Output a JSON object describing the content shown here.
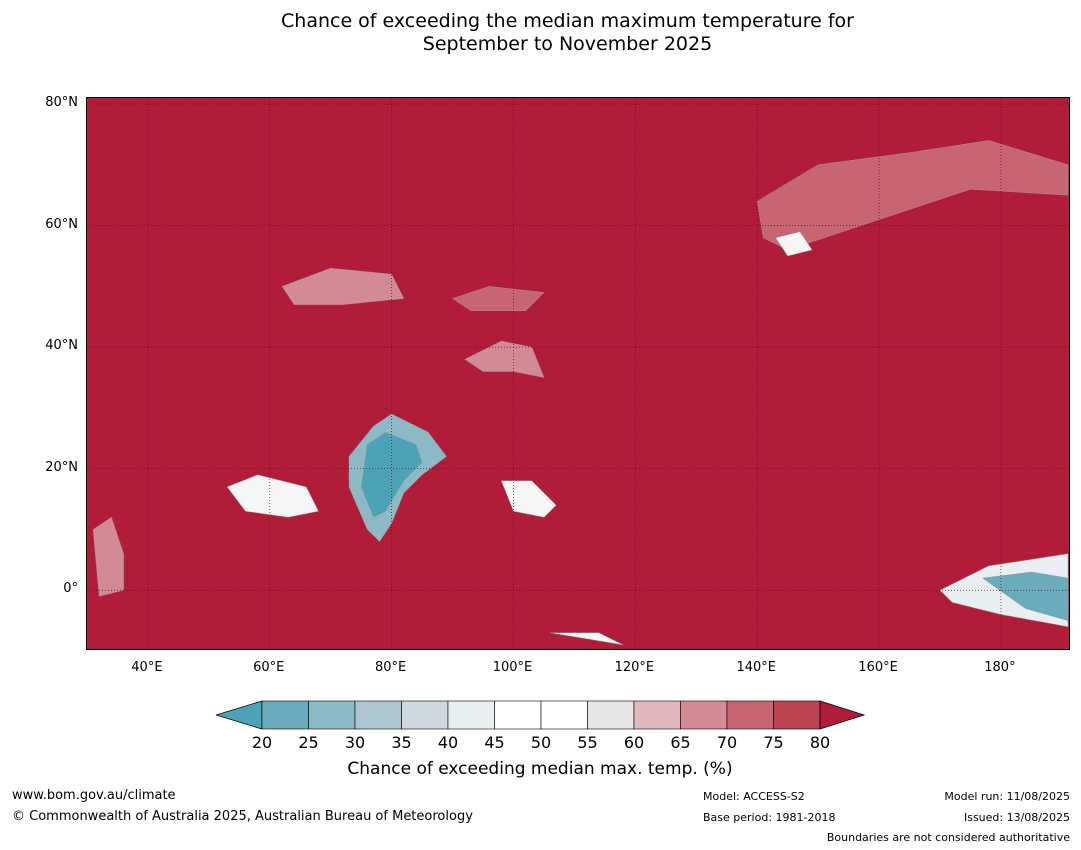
{
  "title_line1": "Chance of exceeding the median maximum temperature for",
  "title_line2": "September to November 2025",
  "map": {
    "projection": "equirectangular",
    "lon_range": [
      30,
      191.5
    ],
    "lat_range": [
      -10,
      81
    ],
    "background_color": "#b11c39",
    "lat_ticks": [
      {
        "value": 80,
        "label": "80°N"
      },
      {
        "value": 60,
        "label": "60°N"
      },
      {
        "value": 40,
        "label": "40°N"
      },
      {
        "value": 20,
        "label": "20°N"
      },
      {
        "value": 0,
        "label": "0°"
      }
    ],
    "lon_ticks": [
      {
        "value": 40,
        "label": "40°E"
      },
      {
        "value": 60,
        "label": "60°E"
      },
      {
        "value": 80,
        "label": "80°E"
      },
      {
        "value": 100,
        "label": "100°E"
      },
      {
        "value": 120,
        "label": "120°E"
      },
      {
        "value": 140,
        "label": "140°E"
      },
      {
        "value": 160,
        "label": "160°E"
      },
      {
        "value": 180,
        "label": "180°"
      }
    ],
    "regions": [
      {
        "name": "india-cool",
        "class": "20-35",
        "points": [
          [
            73,
            22
          ],
          [
            77,
            27
          ],
          [
            80,
            29
          ],
          [
            86,
            26
          ],
          [
            89,
            22
          ],
          [
            85,
            19
          ],
          [
            82,
            16
          ],
          [
            80,
            11
          ],
          [
            78,
            8
          ],
          [
            76,
            10
          ],
          [
            73,
            17
          ]
        ]
      },
      {
        "name": "india-core",
        "class": "20-25",
        "points": [
          [
            76,
            24
          ],
          [
            79,
            26
          ],
          [
            84,
            24
          ],
          [
            85,
            21
          ],
          [
            82,
            18
          ],
          [
            79,
            13
          ],
          [
            77,
            12
          ],
          [
            75,
            17
          ]
        ]
      },
      {
        "name": "arabian-sea-neutral",
        "class": "45-55",
        "points": [
          [
            53,
            17
          ],
          [
            58,
            19
          ],
          [
            66,
            17
          ],
          [
            68,
            13
          ],
          [
            63,
            12
          ],
          [
            56,
            13
          ]
        ]
      },
      {
        "name": "indochina-neutral",
        "class": "45-55",
        "points": [
          [
            98,
            18
          ],
          [
            103,
            18
          ],
          [
            107,
            14
          ],
          [
            105,
            12
          ],
          [
            100,
            13
          ]
        ]
      },
      {
        "name": "tibet-pink",
        "class": "65-75",
        "points": [
          [
            92,
            38
          ],
          [
            98,
            41
          ],
          [
            103,
            40
          ],
          [
            105,
            35
          ],
          [
            100,
            36
          ],
          [
            95,
            36
          ]
        ]
      },
      {
        "name": "central-asia-pink",
        "class": "65-75",
        "points": [
          [
            62,
            50
          ],
          [
            70,
            53
          ],
          [
            80,
            52
          ],
          [
            82,
            48
          ],
          [
            72,
            47
          ],
          [
            64,
            47
          ]
        ]
      },
      {
        "name": "mongolia-pink",
        "class": "70-75",
        "points": [
          [
            90,
            48
          ],
          [
            96,
            50
          ],
          [
            105,
            49
          ],
          [
            102,
            46
          ],
          [
            93,
            46
          ]
        ]
      },
      {
        "name": "siberia-pink",
        "class": "60-75",
        "points": [
          [
            140,
            64
          ],
          [
            150,
            70
          ],
          [
            165,
            72
          ],
          [
            178,
            74
          ],
          [
            191,
            70
          ],
          [
            191,
            65
          ],
          [
            175,
            66
          ],
          [
            160,
            61
          ],
          [
            145,
            56
          ],
          [
            141,
            58
          ]
        ]
      },
      {
        "name": "siberia-neutral",
        "class": "45-55",
        "points": [
          [
            143,
            58
          ],
          [
            147,
            59
          ],
          [
            149,
            56
          ],
          [
            145,
            55
          ]
        ]
      },
      {
        "name": "east-africa-pink",
        "class": "60-70",
        "points": [
          [
            31,
            10
          ],
          [
            34,
            12
          ],
          [
            36,
            6
          ],
          [
            36,
            0
          ],
          [
            32,
            -1
          ]
        ]
      },
      {
        "name": "pacific-neutral",
        "class": "40-55",
        "points": [
          [
            170,
            0
          ],
          [
            178,
            4
          ],
          [
            191,
            6
          ],
          [
            191,
            -6
          ],
          [
            180,
            -4
          ],
          [
            172,
            -2
          ]
        ]
      },
      {
        "name": "pacific-cool",
        "class": "25-35",
        "points": [
          [
            177,
            2
          ],
          [
            185,
            3
          ],
          [
            191,
            2
          ],
          [
            191,
            -5
          ],
          [
            184,
            -3
          ]
        ]
      },
      {
        "name": "indonesia-neutral",
        "class": "45-55",
        "points": [
          [
            106,
            -7
          ],
          [
            112,
            -8
          ],
          [
            118,
            -9
          ],
          [
            114,
            -7
          ]
        ]
      }
    ]
  },
  "colorbar": {
    "label": "Chance of exceeding median max. temp. (%)",
    "ticks": [
      "20",
      "25",
      "30",
      "35",
      "40",
      "45",
      "50",
      "55",
      "60",
      "65",
      "70",
      "75",
      "80"
    ],
    "lower_extension_color": "#4ba3b5",
    "upper_extension_color": "#b11c39",
    "colors": [
      "#6aacbb",
      "#8bbac6",
      "#adc5ce",
      "#cfd8dd",
      "#e9eff1",
      "#ffffff",
      "#ffffff",
      "#e6e6e6",
      "#e1b8be",
      "#d48a94",
      "#c76670",
      "#bd4352"
    ]
  },
  "footer": {
    "url": "www.bom.gov.au/climate",
    "copyright": "© Commonwealth of Australia 2025, Australian Bureau of Meteorology",
    "model": "Model: ACCESS-S2",
    "base_period": "Base period: 1981-2018",
    "model_run": "Model run: 11/08/2025",
    "issued": "Issued: 13/08/2025",
    "disclaimer": "Boundaries are not considered authoritative"
  }
}
